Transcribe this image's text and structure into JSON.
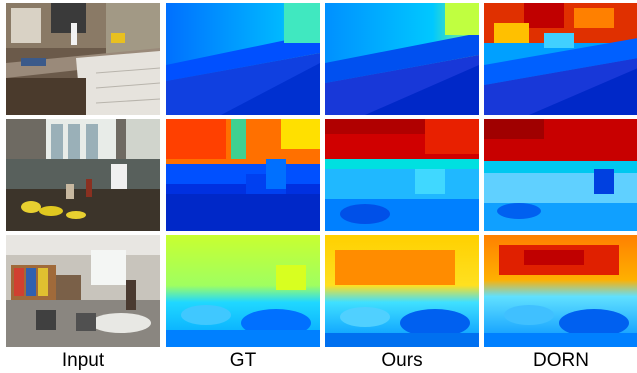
{
  "columns": [
    {
      "label": "Input"
    },
    {
      "label": "GT"
    },
    {
      "label": "Ours"
    },
    {
      "label": "DORN"
    }
  ],
  "rows": [
    {
      "scene": "kitchen-counter"
    },
    {
      "scene": "kitchen-sink-bananas"
    },
    {
      "scene": "classroom"
    }
  ],
  "colors": {
    "jet_deep_blue": "#0000c8",
    "jet_blue": "#0040ff",
    "jet_cyan": "#00c8ff",
    "jet_yellow": "#f0f000",
    "jet_orange": "#ff8000",
    "jet_red": "#d00000"
  }
}
